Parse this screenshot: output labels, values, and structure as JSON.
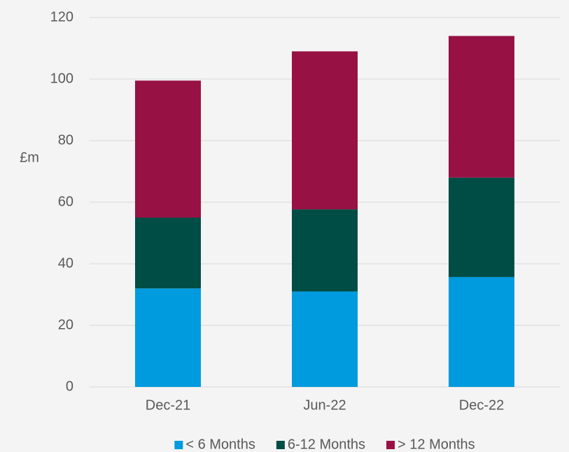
{
  "chart_data": {
    "type": "stacked_bar",
    "y_label": "£m",
    "categories": [
      "Dec-21",
      "Jun-22",
      "Dec-22"
    ],
    "series": [
      {
        "name": "< 6 Months",
        "color": "#009ade",
        "values": [
          32,
          31,
          35.7
        ]
      },
      {
        "name": "6-12 Months",
        "color": "#004d45",
        "values": [
          23,
          26.7,
          32.3
        ]
      },
      {
        "name": "> 12 Months",
        "color": "#981145",
        "values": [
          44.5,
          51.3,
          46
        ]
      }
    ],
    "ylim": [
      0,
      120
    ],
    "yticks": [
      0,
      20,
      40,
      60,
      80,
      100,
      120
    ],
    "grid": true,
    "legend": "bottom"
  }
}
